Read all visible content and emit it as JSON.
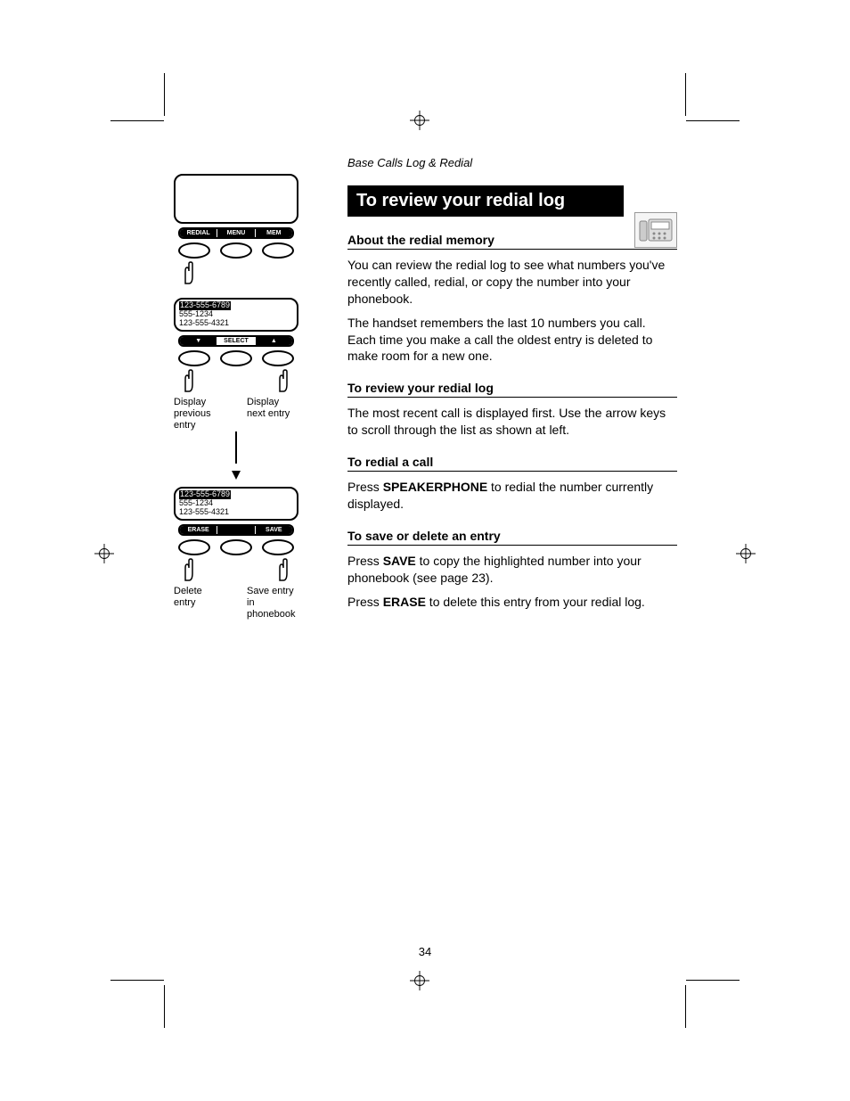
{
  "header_small": "Base Calls Log & Redial",
  "title_bar": "To review your redial log",
  "sections": [
    {
      "heading": "About the redial memory",
      "paragraphs": [
        "You can review the redial log to see what numbers you've recently called, redial, or copy the number into your phonebook.",
        "The handset remembers the last 10 numbers you call. Each time you make a call the oldest entry is deleted to make room for a new one."
      ]
    },
    {
      "heading": "To review your redial log",
      "paragraphs": [
        "The most recent call is displayed first. Use the arrow keys to scroll through the list as shown at left."
      ]
    },
    {
      "heading": "To redial a call",
      "paragraphs": [
        "Press {{SPEAKERPHONE}} to redial the number currently displayed."
      ]
    },
    {
      "heading": "To save or delete an entry",
      "paragraphs": [
        "Press {{SAVE}} to copy the highlighted number into your phonebook (see page 23).",
        "Press {{ERASE}} to delete this entry from your redial log."
      ]
    }
  ],
  "page_number": "34",
  "diagram": {
    "screen1_labels": [
      "REDIAL",
      "MENU",
      "MEM"
    ],
    "screen2_display": {
      "hl": "123-555-6789",
      "line2": "555-1234",
      "line3": "123-555-4321"
    },
    "screen2_labels": [
      "▼",
      "SELECT",
      "▲"
    ],
    "captions2": {
      "left": "Display previous entry",
      "right": "Display next entry"
    },
    "screen3_display": {
      "hl": "123-555-6789",
      "line2": "555-1234",
      "line3": "123-555-4321"
    },
    "screen3_labels": [
      "ERASE",
      "",
      "SAVE"
    ],
    "captions3": {
      "left": "Delete entry",
      "right": "Save entry in phonebook"
    }
  },
  "colors": {
    "text": "#000000",
    "bg": "#ffffff",
    "bar_bg": "#000000",
    "bar_fg": "#ffffff"
  }
}
